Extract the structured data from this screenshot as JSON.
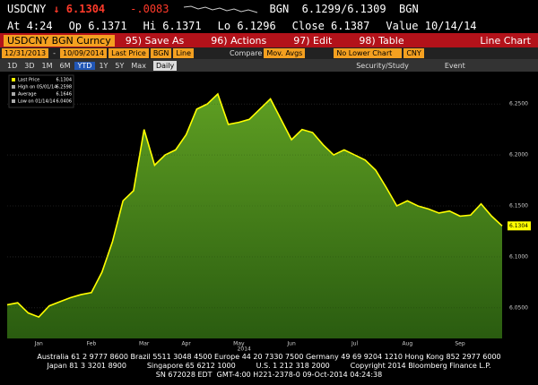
{
  "header": {
    "ticker": "USDCNY",
    "last": "↓ 6.1304",
    "change": "-.0083",
    "quote": "BGN  6.1299/6.1309  BGN",
    "stats": [
      "At 4:24",
      "Op 6.1371",
      "Hi 6.1371",
      "Lo 6.1296",
      "Close 6.1387",
      "Value 10/14/14"
    ]
  },
  "toolbar": {
    "security": "USDCNY BGN Curncy",
    "buttons": [
      "95) Save As",
      "96) Actions",
      "97) Edit",
      "98) Table"
    ],
    "view": "Line Chart",
    "fields": [
      "12/31/2013",
      "-",
      "10/09/2014",
      "Last Price",
      "BGN",
      "Line"
    ],
    "compare": "Compare",
    "mov": "Mov. Avgs",
    "lower": "No Lower Chart",
    "ccy": "CNY",
    "periods": [
      "1D",
      "3D",
      "1M",
      "6M",
      "YTD",
      "1Y",
      "5Y",
      "Max"
    ],
    "active_period": "YTD",
    "freq": "Daily",
    "study": "Security/Study",
    "event": "Event"
  },
  "chart_data": {
    "type": "area",
    "categories": [
      null,
      null,
      null,
      "Jan",
      null,
      null,
      null,
      null,
      "Feb",
      null,
      null,
      null,
      null,
      "Mar",
      null,
      null,
      null,
      "Apr",
      null,
      null,
      null,
      null,
      "May",
      null,
      null,
      null,
      null,
      "Jun",
      null,
      null,
      null,
      null,
      null,
      "Jul",
      null,
      null,
      null,
      null,
      "Aug",
      null,
      null,
      null,
      null,
      "Sep",
      null,
      null,
      null,
      null
    ],
    "series": [
      {
        "name": "Last Price",
        "color": "#ffff00",
        "values": [
          6.053,
          6.055,
          6.045,
          6.041,
          6.052,
          6.056,
          6.06,
          6.063,
          6.065,
          6.085,
          6.115,
          6.155,
          6.165,
          6.225,
          6.19,
          6.2,
          6.205,
          6.22,
          6.245,
          6.25,
          6.2598,
          6.23,
          6.232,
          6.235,
          6.245,
          6.255,
          6.235,
          6.215,
          6.225,
          6.222,
          6.21,
          6.2,
          6.205,
          6.2,
          6.195,
          6.185,
          6.168,
          6.15,
          6.155,
          6.15,
          6.147,
          6.143,
          6.145,
          6.14,
          6.141,
          6.152,
          6.14,
          6.1304
        ]
      }
    ],
    "fill": "#3f7d18",
    "xlabel": "2014",
    "legend_items": [
      {
        "label": "Last Price",
        "value": 6.1304
      },
      {
        "label": "High on 05/01/14",
        "value": 6.2598
      },
      {
        "label": "Average",
        "value": 6.1646
      },
      {
        "label": "Low on 01/14/14",
        "value": 6.0406
      }
    ],
    "last_value": 6.1304,
    "ylim": [
      6.02,
      6.28
    ],
    "yticks": [
      {
        "value": 6.05,
        "label": "6.0500"
      },
      {
        "value": 6.1,
        "label": "6.1000"
      },
      {
        "value": 6.15,
        "label": "6.1500"
      },
      {
        "value": 6.2,
        "label": "6.2000"
      },
      {
        "value": 6.25,
        "label": "6.2500"
      }
    ],
    "grid": true
  },
  "footer": [
    "Australia 61 2 9777 8600 Brazil 5511 3048 4500 Europe 44 20 7330 7500 Germany 49 69 9204 1210 Hong Kong 852 2977 6000",
    "Japan 81 3 3201 8900         Singapore 65 6212 1000         U.S. 1 212 318 2000         Copyright 2014 Bloomberg Finance L.P.",
    "SN 672028 EDT  GMT-4:00 H221-2378-0 09-Oct-2014 04:24:38"
  ]
}
